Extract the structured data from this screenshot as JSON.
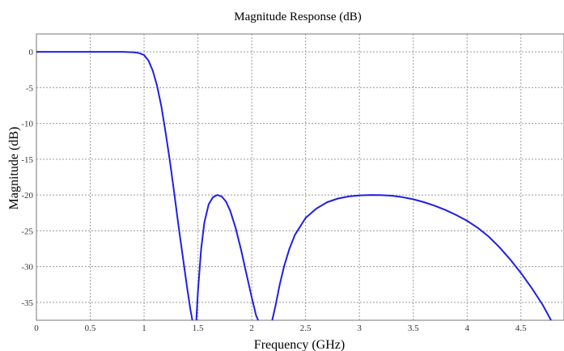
{
  "chart_data": {
    "type": "line",
    "title": "Magnitude Response (dB)",
    "xlabel": "Frequency (GHz)",
    "ylabel": "Magnitude (dB)",
    "xlim": [
      0,
      4.9
    ],
    "ylim": [
      -37.5,
      2.5
    ],
    "x_ticks": [
      0,
      0.5,
      1,
      1.5,
      2,
      2.5,
      3,
      3.5,
      4,
      4.5
    ],
    "x_tick_labels": [
      "0",
      "0.5",
      "1",
      "1.5",
      "2",
      "2.5",
      "3",
      "3.5",
      "4",
      "4.5"
    ],
    "y_ticks": [
      0,
      -5,
      -10,
      -15,
      -20,
      -25,
      -30,
      -35
    ],
    "y_tick_labels": [
      "0",
      "-5",
      "-10",
      "-15",
      "-20",
      "-25",
      "-30",
      "-35"
    ],
    "grid": true,
    "line_color": "#1f1fe6",
    "series": [
      {
        "points": [
          [
            0,
            0
          ],
          [
            0.5,
            0
          ],
          [
            0.8,
            0
          ],
          [
            0.9,
            -0.05
          ],
          [
            0.95,
            -0.15
          ],
          [
            1.0,
            -0.45
          ],
          [
            1.04,
            -1.2
          ],
          [
            1.08,
            -2.6
          ],
          [
            1.12,
            -4.7
          ],
          [
            1.16,
            -7.6
          ],
          [
            1.2,
            -11.3
          ],
          [
            1.24,
            -15.3
          ],
          [
            1.28,
            -19.7
          ],
          [
            1.32,
            -24.3
          ],
          [
            1.36,
            -28.7
          ],
          [
            1.4,
            -33.0
          ],
          [
            1.43,
            -36.0
          ],
          [
            1.448,
            -37.5
          ],
          null,
          [
            1.485,
            -37.5
          ],
          [
            1.5,
            -33.5
          ],
          [
            1.53,
            -27.5
          ],
          [
            1.56,
            -23.8
          ],
          [
            1.6,
            -21.3
          ],
          [
            1.64,
            -20.3
          ],
          [
            1.68,
            -20.0
          ],
          [
            1.72,
            -20.2
          ],
          [
            1.76,
            -20.9
          ],
          [
            1.8,
            -22.2
          ],
          [
            1.85,
            -24.6
          ],
          [
            1.9,
            -27.6
          ],
          [
            1.95,
            -31.0
          ],
          [
            2.0,
            -34.3
          ],
          [
            2.04,
            -36.8
          ],
          [
            2.06,
            -37.5
          ],
          null,
          [
            2.19,
            -37.5
          ],
          [
            2.22,
            -35.5
          ],
          [
            2.26,
            -32.5
          ],
          [
            2.3,
            -30.0
          ],
          [
            2.35,
            -27.5
          ],
          [
            2.4,
            -25.6
          ],
          [
            2.5,
            -23.2
          ],
          [
            2.6,
            -21.9
          ],
          [
            2.7,
            -21.0
          ],
          [
            2.8,
            -20.5
          ],
          [
            2.9,
            -20.2
          ],
          [
            3.0,
            -20.05
          ],
          [
            3.1,
            -20.0
          ],
          [
            3.2,
            -20.02
          ],
          [
            3.3,
            -20.1
          ],
          [
            3.4,
            -20.3
          ],
          [
            3.5,
            -20.6
          ],
          [
            3.6,
            -21.0
          ],
          [
            3.7,
            -21.5
          ],
          [
            3.8,
            -22.1
          ],
          [
            3.9,
            -22.8
          ],
          [
            4.0,
            -23.6
          ],
          [
            4.1,
            -24.6
          ],
          [
            4.2,
            -25.8
          ],
          [
            4.3,
            -27.3
          ],
          [
            4.4,
            -29.0
          ],
          [
            4.5,
            -30.9
          ],
          [
            4.6,
            -33.0
          ],
          [
            4.7,
            -35.3
          ],
          [
            4.78,
            -37.5
          ]
        ]
      }
    ]
  }
}
